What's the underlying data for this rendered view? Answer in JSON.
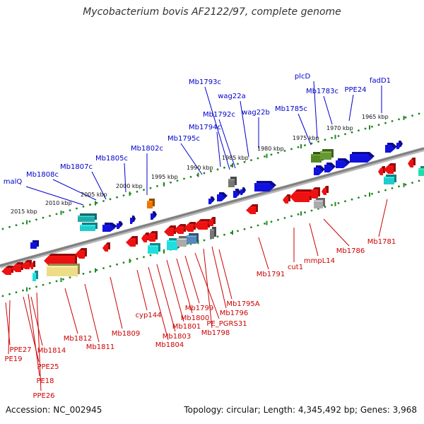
{
  "title": "Mycobacterium bovis AF2122/97, complete genome",
  "footer": {
    "accession": "Accession: NC_002945",
    "topology": "Topology: circular; Length: 4,345,492 bp; Genes: 3,968"
  },
  "colors": {
    "top_label": "#0000cc",
    "bottom_label": "#cc0000",
    "dots": "#228822",
    "backbone": "#808080"
  },
  "ticks": [
    "2015 kbp",
    "2010 kbp",
    "2005 kbp",
    "2000 kbp",
    "1995 kbp",
    "1990 kbp",
    "1985 kbp",
    "1980 kbp",
    "1975 kbp",
    "1970 kbp",
    "1965 kbp"
  ],
  "top_genes": [
    "malQ",
    "Mb1808c",
    "Mb1807c",
    "Mb1805c",
    "Mb1802c",
    "Mb1795c",
    "Mb1794c",
    "Mb1793c",
    "Mb1792c",
    "wag22a",
    "wag22b",
    "Mb1785c",
    "plcD",
    "Mb1783c",
    "PPE24",
    "fadD1"
  ],
  "bottom_genes": [
    "PPE27",
    "PE19",
    "Mb1814",
    "PPE25",
    "PE18",
    "PPE26",
    "Mb1812",
    "Mb1811",
    "Mb1809",
    "cyp144",
    "Mb1804",
    "Mb1803",
    "Mb1801",
    "Mb1800",
    "Mb1799",
    "PE_PGRS31",
    "Mb1798",
    "Mb1796",
    "Mb1795A",
    "Mb1791",
    "cut1",
    "mmpL14",
    "Mb1786",
    "Mb1781"
  ]
}
